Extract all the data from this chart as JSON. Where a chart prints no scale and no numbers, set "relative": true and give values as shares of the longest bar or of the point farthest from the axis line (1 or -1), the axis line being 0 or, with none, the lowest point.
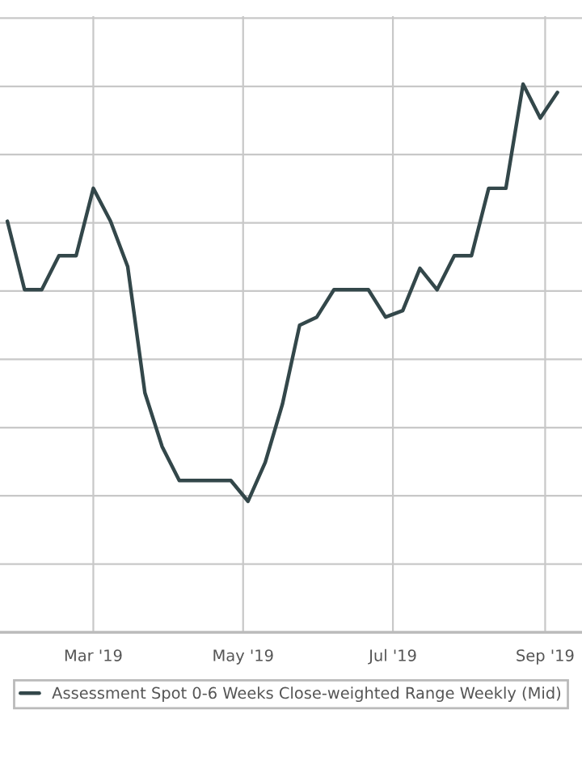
{
  "chart_data": {
    "type": "line",
    "relative": true,
    "grid": true,
    "legend": "bottom",
    "marker": "none",
    "line_style": "solid",
    "xlim": [
      "2019-01-22",
      "2019-09-16"
    ],
    "xticks": [
      {
        "value": "2019-03-01",
        "label": "Mar '19"
      },
      {
        "value": "2019-05-01",
        "label": "May '19"
      },
      {
        "value": "2019-07-01",
        "label": "Jul '19"
      },
      {
        "value": "2019-09-01",
        "label": "Sep '19"
      }
    ],
    "x": [
      "2019-01-25",
      "2019-02-01",
      "2019-02-08",
      "2019-02-15",
      "2019-02-22",
      "2019-03-01",
      "2019-03-08",
      "2019-03-15",
      "2019-03-22",
      "2019-03-29",
      "2019-04-05",
      "2019-04-12",
      "2019-04-19",
      "2019-04-26",
      "2019-05-03",
      "2019-05-10",
      "2019-05-17",
      "2019-05-24",
      "2019-05-31",
      "2019-06-07",
      "2019-06-14",
      "2019-06-21",
      "2019-06-28",
      "2019-07-05",
      "2019-07-12",
      "2019-07-19",
      "2019-07-26",
      "2019-08-02",
      "2019-08-09",
      "2019-08-16",
      "2019-08-23",
      "2019-08-30",
      "2019-09-06"
    ],
    "series": [
      {
        "name": "Assessment Spot 0-6 Weeks Close-weighted Range Weekly (Mid)",
        "color": "#33474a",
        "values": [
          0.75,
          0.625,
          0.625,
          0.687,
          0.687,
          0.81,
          0.75,
          0.667,
          0.437,
          0.339,
          0.277,
          0.277,
          0.277,
          0.277,
          0.239,
          0.31,
          0.416,
          0.56,
          0.575,
          0.625,
          0.625,
          0.625,
          0.575,
          0.587,
          0.664,
          0.625,
          0.687,
          0.687,
          0.81,
          0.81,
          1,
          0.938,
          0.985
        ]
      }
    ]
  }
}
